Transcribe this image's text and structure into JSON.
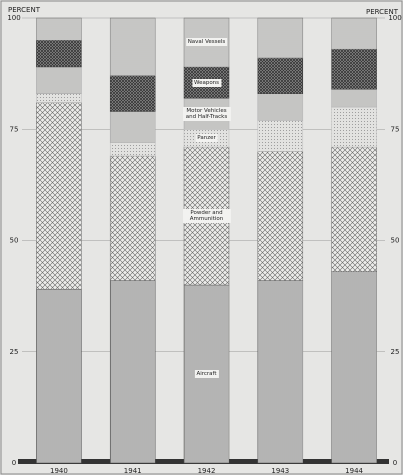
{
  "chart_data": {
    "type": "stacked_bar",
    "ylabel": "PERCENT",
    "categories": [
      "1940",
      "1941",
      "1942",
      "1943",
      "1944"
    ],
    "series": [
      {
        "name": "Aircraft",
        "color": "#555555",
        "values": [
          39,
          41,
          40,
          41,
          43
        ]
      },
      {
        "name": "Powder and Ammunition",
        "color": "#666666",
        "values": [
          42,
          28,
          31,
          29,
          28
        ]
      },
      {
        "name": "Panzer",
        "color": "#bbbbbb",
        "values": [
          2,
          3,
          4,
          7,
          9
        ]
      },
      {
        "name": "Motor Vehicles and Half-Tracks",
        "color": "#aaaaaa",
        "values": [
          6,
          7,
          7,
          6,
          4
        ]
      },
      {
        "name": "Weapons",
        "color": "#333333",
        "values": [
          6,
          8,
          7,
          8,
          9
        ]
      },
      {
        "name": "Naval Vessels",
        "color": "#777777",
        "values": [
          5,
          13,
          11,
          9,
          7
        ]
      }
    ],
    "label_category": "1942",
    "ylim": [
      0,
      100
    ],
    "yticks": [
      0,
      25,
      50,
      75,
      100
    ],
    "grid": true
  }
}
